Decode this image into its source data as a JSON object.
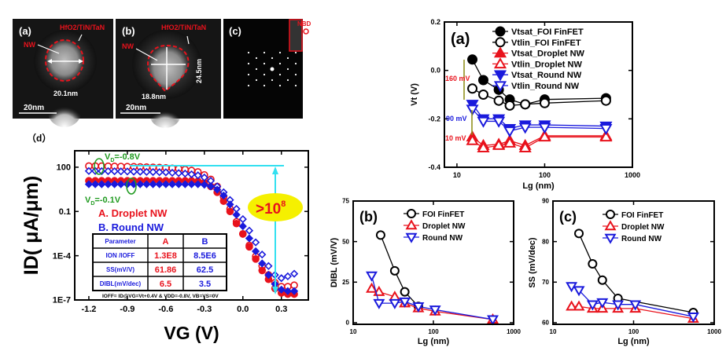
{
  "colors": {
    "red": "#e8121c",
    "blue": "#1a1adc",
    "black": "#000000",
    "green": "#1f9a1f",
    "cyan": "#33e0f0",
    "yellow": "#f5f000",
    "olive": "#8a8a10"
  },
  "tem": {
    "a": {
      "label": "(a)",
      "gate": "HfO2/TiN/TaN",
      "nw": "NW",
      "dim": "20.1nm",
      "scale": "20nm"
    },
    "b": {
      "label": "(b)",
      "gate": "HfO2/TiN/TaN",
      "nw": "NW",
      "dim_h": "18.8nm",
      "dim_v": "24.5nm",
      "scale": "20nm"
    },
    "c": {
      "label": "(c)",
      "inset": "NBD"
    }
  },
  "panel_d": {
    "label": "（d）",
    "vd_high": {
      "main": "V",
      "sub": "D",
      "rest": "=-0.8V"
    },
    "vd_low": {
      "main": "V",
      "sub": "D",
      "rest": "=-0.1V"
    },
    "legend_a": "A. Droplet NW",
    "legend_b": "B. Round NW",
    "ratio": {
      "main": ">10",
      "sup": "8"
    },
    "table": {
      "headers": [
        "Parameter",
        "A",
        "B"
      ],
      "rows": [
        {
          "param": "ION /IOFF",
          "a": "1.3E8",
          "b": "8.5E6"
        },
        {
          "param": "SS(mV/V)",
          "a": "61.86",
          "b": "62.5"
        },
        {
          "param": "DIBL(mV/dec)",
          "a": "6.5",
          "b": "3.5"
        }
      ]
    },
    "footnote": "IOFF= ID@VG=Vt+0.4V & VDD=-0.8V, VB=VS=0V"
  },
  "panel_a_annotations": {
    "d160": "160 mV",
    "d90": "90 mV",
    "d10": "10 mV"
  },
  "chart_data": [
    {
      "id": "d",
      "type": "scatter",
      "label": "(d)",
      "xlabel": "VG (V)",
      "ylabel": "ID( μA/μm)",
      "yscale": "log",
      "xlim": [
        -1.31,
        0.51
      ],
      "ylim": [
        1e-07,
        1300
      ],
      "x_ticks": [
        -1.2,
        -0.9,
        -0.6,
        -0.3,
        0.0,
        0.3
      ],
      "x_tick_labels": [
        "-1.2",
        "-0.9",
        "-0.6",
        "-0.3",
        "0.0",
        "0.3"
      ],
      "y_ticks": [
        100,
        0.1,
        0.0001,
        1e-07
      ],
      "y_tick_labels": [
        "100",
        "0.1",
        "1E-4",
        "1E-7"
      ],
      "x": [
        -1.2,
        -1.15,
        -1.1,
        -1.05,
        -1.0,
        -0.95,
        -0.9,
        -0.85,
        -0.8,
        -0.75,
        -0.7,
        -0.65,
        -0.6,
        -0.55,
        -0.5,
        -0.45,
        -0.4,
        -0.35,
        -0.3,
        -0.25,
        -0.2,
        -0.15,
        -0.1,
        -0.05,
        0.0,
        0.05,
        0.1,
        0.15,
        0.2,
        0.25,
        0.3,
        0.35,
        0.4
      ],
      "series": [
        {
          "name": "A. Droplet NW, VD=-0.8V",
          "color": "#e8121c",
          "marker": "circle",
          "filled": false,
          "values": [
            120,
            120,
            118,
            116,
            114,
            112,
            110,
            108,
            105,
            102,
            99,
            95,
            90,
            85,
            78,
            70,
            60,
            48,
            30,
            15,
            5,
            1,
            0.15,
            0.02,
            0.003,
            0.0005,
            9e-05,
            2e-05,
            5e-06,
            1.5e-06,
            8e-07,
            8e-07,
            1e-06
          ]
        },
        {
          "name": "A. Droplet NW, VD=-0.1V",
          "color": "#e8121c",
          "marker": "circle",
          "filled": true,
          "values": [
            12,
            12,
            12,
            12,
            12,
            12,
            12,
            12,
            12,
            12,
            12,
            12,
            12,
            12,
            12,
            12,
            12,
            11,
            9,
            5,
            2,
            0.5,
            0.1,
            0.015,
            0.003,
            0.0004,
            6e-05,
            1e-05,
            2.5e-06,
            6e-07,
            3e-07,
            2.5e-07,
            2.5e-07
          ]
        },
        {
          "name": "B. Round NW, VD=-0.8V",
          "color": "#1a1adc",
          "marker": "diamond",
          "filled": false,
          "values": [
            55,
            55,
            54,
            54,
            53,
            52,
            51,
            50,
            49,
            48,
            47,
            46,
            45,
            42,
            40,
            37,
            33,
            28,
            20,
            12,
            5,
            2,
            0.6,
            0.15,
            0.03,
            0.005,
            0.0008,
            0.00012,
            2e-05,
            5e-06,
            3e-06,
            4e-06,
            6e-06
          ]
        },
        {
          "name": "B. Round NW, VD=-0.1V",
          "color": "#1a1adc",
          "marker": "diamond",
          "filled": true,
          "values": [
            7,
            7,
            7,
            7,
            7,
            7,
            7,
            7,
            7,
            7,
            7,
            7,
            7,
            7,
            7,
            7,
            7,
            7,
            6.5,
            5,
            3,
            1.2,
            0.3,
            0.06,
            0.01,
            0.0015,
            0.0002,
            3e-05,
            5e-06,
            1.2e-06,
            5e-07,
            4e-07,
            4e-07
          ]
        }
      ]
    },
    {
      "id": "a",
      "type": "line",
      "label": "(a)",
      "xlabel": "Lg (nm)",
      "ylabel": "Vt (V)",
      "xscale": "log",
      "xlim": [
        7.2,
        1000
      ],
      "ylim": [
        -0.4,
        0.2
      ],
      "x_ticks": [
        10,
        100,
        1000
      ],
      "x_tick_labels": [
        "10",
        "100",
        "1000"
      ],
      "y_ticks": [
        0.2,
        0.0,
        -0.2,
        -0.4
      ],
      "y_tick_labels": [
        "0.2",
        "0.0",
        "-0.2",
        "-0.4"
      ],
      "legend": "top-right",
      "series": [
        {
          "name": "Vtsat_FOI FinFET",
          "color": "#000000",
          "marker": "circle",
          "filled": true,
          "x": [
            15,
            20,
            30,
            40,
            60,
            100,
            500
          ],
          "values": [
            0.045,
            -0.04,
            -0.08,
            -0.12,
            -0.14,
            -0.12,
            -0.115
          ]
        },
        {
          "name": "Vtlin_FOI FinFET",
          "color": "#000000",
          "marker": "circle",
          "filled": false,
          "x": [
            15,
            20,
            30,
            40,
            60,
            100,
            500
          ],
          "values": [
            -0.075,
            -0.1,
            -0.125,
            -0.145,
            -0.14,
            -0.135,
            -0.125
          ]
        },
        {
          "name": "Vtsat_Droplet NW",
          "color": "#e8121c",
          "marker": "up",
          "filled": true,
          "x": [
            15,
            20,
            30,
            40,
            60,
            100,
            500
          ],
          "values": [
            -0.275,
            -0.31,
            -0.305,
            -0.29,
            -0.31,
            -0.27,
            -0.27
          ]
        },
        {
          "name": "Vtlin_Droplet NW",
          "color": "#e8121c",
          "marker": "up",
          "filled": false,
          "x": [
            15,
            20,
            30,
            40,
            60,
            100,
            500
          ],
          "values": [
            -0.29,
            -0.32,
            -0.31,
            -0.3,
            -0.32,
            -0.275,
            -0.275
          ]
        },
        {
          "name": "Vtsat_Round NW",
          "color": "#1a1adc",
          "marker": "down",
          "filled": true,
          "x": [
            15,
            20,
            30,
            40,
            60,
            100,
            500
          ],
          "values": [
            -0.14,
            -0.2,
            -0.2,
            -0.24,
            -0.225,
            -0.225,
            -0.23
          ]
        },
        {
          "name": "Vtlin_Round NW",
          "color": "#1a1adc",
          "marker": "down",
          "filled": false,
          "x": [
            15,
            20,
            30,
            40,
            60,
            100,
            500
          ],
          "values": [
            -0.16,
            -0.21,
            -0.21,
            -0.25,
            -0.235,
            -0.235,
            -0.24
          ]
        }
      ]
    },
    {
      "id": "b",
      "type": "line",
      "label": "(b)",
      "xlabel": "Lg (nm)",
      "ylabel": "DIBL (mV/V)",
      "xscale": "log",
      "xlim": [
        10,
        1000
      ],
      "ylim": [
        -1,
        75
      ],
      "x_ticks": [
        10,
        100,
        1000
      ],
      "x_tick_labels": [
        "10",
        "100",
        "1000"
      ],
      "y_ticks": [
        0,
        25,
        50,
        75
      ],
      "y_tick_labels": [
        "0",
        "25",
        "50",
        "75"
      ],
      "legend": "top-right",
      "series": [
        {
          "name": "FOI FinFET",
          "color": "#000000",
          "marker": "circle",
          "filled": false,
          "x": [
            22,
            33,
            44,
            65
          ],
          "values": [
            54,
            32,
            19,
            10
          ]
        },
        {
          "name": "Droplet NW",
          "color": "#e8121c",
          "marker": "up",
          "filled": false,
          "x": [
            17,
            21,
            33,
            44,
            65,
            105,
            550
          ],
          "values": [
            21,
            19,
            16,
            12,
            9,
            7,
            2
          ]
        },
        {
          "name": "Round NW",
          "color": "#1a1adc",
          "marker": "down",
          "filled": false,
          "x": [
            17,
            21,
            33,
            44,
            65,
            105,
            550
          ],
          "values": [
            29,
            12,
            12,
            13,
            10,
            8,
            2
          ]
        }
      ]
    },
    {
      "id": "c",
      "type": "line",
      "label": "(c)",
      "xlabel": "Lg (nm)",
      "ylabel": "SS (mV/dec)",
      "xscale": "log",
      "xlim": [
        10,
        1000
      ],
      "ylim": [
        59.6,
        90
      ],
      "x_ticks": [
        10,
        100,
        1000
      ],
      "x_tick_labels": [
        "10",
        "100",
        "1000"
      ],
      "y_ticks": [
        60,
        70,
        80,
        90
      ],
      "y_tick_labels": [
        "60",
        "70",
        "80",
        "90"
      ],
      "legend": "top-right",
      "series": [
        {
          "name": "FOI FinFET",
          "color": "#000000",
          "marker": "circle",
          "filled": false,
          "x": [
            21,
            31,
            41,
            64,
            550
          ],
          "values": [
            82,
            74.5,
            70.5,
            66,
            62.5
          ]
        },
        {
          "name": "Droplet NW",
          "color": "#e8121c",
          "marker": "up",
          "filled": false,
          "x": [
            17,
            21,
            31,
            41,
            64,
            105,
            550
          ],
          "values": [
            64,
            64,
            63.5,
            63.5,
            63.5,
            63.5,
            61
          ]
        },
        {
          "name": "Round NW",
          "color": "#1a1adc",
          "marker": "down",
          "filled": false,
          "x": [
            17,
            21,
            31,
            41,
            64,
            105,
            550
          ],
          "values": [
            69,
            68,
            64.5,
            65,
            64.5,
            64.5,
            61.5
          ]
        }
      ]
    }
  ]
}
